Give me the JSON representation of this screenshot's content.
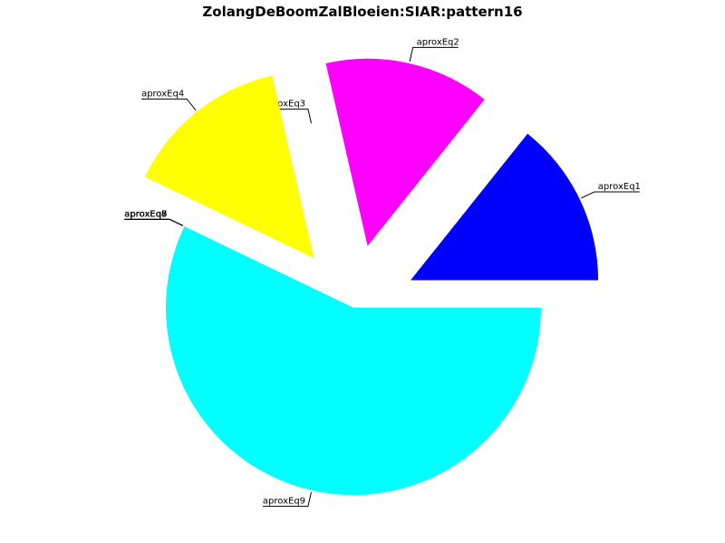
{
  "chart_data": {
    "type": "pie",
    "title": "ZolangDeBoomZalBloeien:SIAR:pattern16",
    "categories": [
      "aproxEq1",
      "aproxEq2",
      "aproxEq3",
      "aproxEq4",
      "aproxEq5",
      "aproxEq6",
      "aproxEq7",
      "aproxEq8",
      "aproxEq9"
    ],
    "values": [
      1,
      1,
      0,
      1,
      0,
      0,
      0,
      0,
      4
    ],
    "colors": [
      "#0000ff",
      "#ff00ff",
      null,
      "#ffff00",
      null,
      null,
      null,
      null,
      "#00ffff"
    ]
  }
}
